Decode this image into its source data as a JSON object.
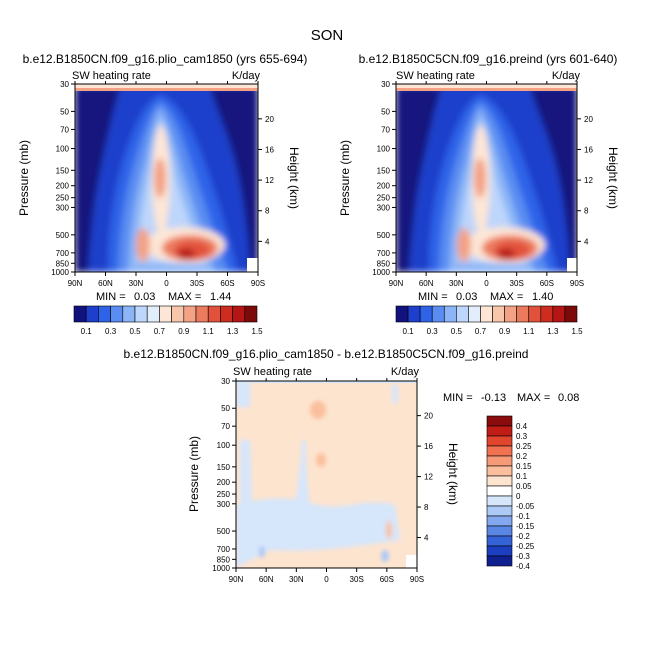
{
  "figure_title": "SON",
  "chart_data": [
    {
      "type": "heatmap",
      "title": "b.e12.B1850CN.f09_g16.plio_cam1850 (yrs 655-694)",
      "left_label": "SW heating rate",
      "right_label": "K/day",
      "xlabel": "",
      "ylabel": "Pressure (mb)",
      "y2label": "Height (km)",
      "x_ticks": [
        "90N",
        "60N",
        "30N",
        "0",
        "30S",
        "60S",
        "90S"
      ],
      "p_ticks": [
        "30",
        "50",
        "70",
        "100",
        "150",
        "200",
        "250",
        "300",
        "500",
        "700",
        "850",
        "1000"
      ],
      "h_ticks": [
        "20",
        "16",
        "12",
        "8",
        "4"
      ],
      "min_label": "MIN =",
      "min_value": "0.03",
      "max_label": "MAX =",
      "max_value": "1.44",
      "colorbar_labels": [
        "0.1",
        "0.3",
        "0.5",
        "0.7",
        "0.9",
        "1.1",
        "1.3",
        "1.5"
      ],
      "colorbar_levels": [
        0.1,
        0.2,
        0.3,
        0.4,
        0.5,
        0.6,
        0.7,
        0.8,
        0.9,
        1.0,
        1.1,
        1.2,
        1.3,
        1.4,
        1.5
      ]
    },
    {
      "type": "heatmap",
      "title": "b.e12.B1850C5CN.f09_g16.preind (yrs 601-640)",
      "left_label": "SW heating rate",
      "right_label": "K/day",
      "xlabel": "",
      "ylabel": "Pressure (mb)",
      "y2label": "Height (km)",
      "x_ticks": [
        "90N",
        "60N",
        "30N",
        "0",
        "30S",
        "60S",
        "90S"
      ],
      "p_ticks": [
        "30",
        "50",
        "70",
        "100",
        "150",
        "200",
        "250",
        "300",
        "500",
        "700",
        "850",
        "1000"
      ],
      "h_ticks": [
        "20",
        "16",
        "12",
        "8",
        "4"
      ],
      "min_label": "MIN =",
      "min_value": "0.03",
      "max_label": "MAX =",
      "max_value": "1.40",
      "colorbar_labels": [
        "0.1",
        "0.3",
        "0.5",
        "0.7",
        "0.9",
        "1.1",
        "1.3",
        "1.5"
      ],
      "colorbar_levels": [
        0.1,
        0.2,
        0.3,
        0.4,
        0.5,
        0.6,
        0.7,
        0.8,
        0.9,
        1.0,
        1.1,
        1.2,
        1.3,
        1.4,
        1.5
      ]
    },
    {
      "type": "heatmap",
      "title": "b.e12.B1850CN.f09_g16.plio_cam1850 - b.e12.B1850C5CN.f09_g16.preind",
      "left_label": "SW heating rate",
      "right_label": "K/day",
      "xlabel": "",
      "ylabel": "Pressure (mb)",
      "y2label": "Height (km)",
      "x_ticks": [
        "90N",
        "60N",
        "30N",
        "0",
        "30S",
        "60S",
        "90S"
      ],
      "p_ticks": [
        "30",
        "50",
        "70",
        "100",
        "150",
        "200",
        "250",
        "300",
        "500",
        "700",
        "850",
        "1000"
      ],
      "h_ticks": [
        "20",
        "16",
        "12",
        "8",
        "4"
      ],
      "min_label": "MIN =",
      "min_value": "-0.13",
      "max_label": "MAX =",
      "max_value": "0.08",
      "colorbar_labels": [
        "0.4",
        "0.3",
        "0.25",
        "0.2",
        "0.15",
        "0.1",
        "0.05",
        "0",
        "-0.05",
        "-0.1",
        "-0.15",
        "-0.2",
        "-0.25",
        "-0.3",
        "-0.4"
      ]
    }
  ],
  "colors": {
    "abs_palette": [
      "#12127e",
      "#1d3fcb",
      "#2e63e8",
      "#5a8df2",
      "#8cb5f7",
      "#bdd6fb",
      "#e3eefc",
      "#fde6d6",
      "#f8c6aa",
      "#f3a285",
      "#ec7b5e",
      "#e2513b",
      "#cf2c20",
      "#b51514",
      "#7d0a0a"
    ],
    "diff_palette": [
      "#8b0c0c",
      "#bf1d16",
      "#e0452d",
      "#f07250",
      "#f79a78",
      "#fbbf9d",
      "#fde4cf",
      "#ffffff",
      "#d6e6fb",
      "#adc9f5",
      "#83a8ef",
      "#5a86e6",
      "#3462d7",
      "#1b3fbf",
      "#0e1f8f"
    ]
  }
}
